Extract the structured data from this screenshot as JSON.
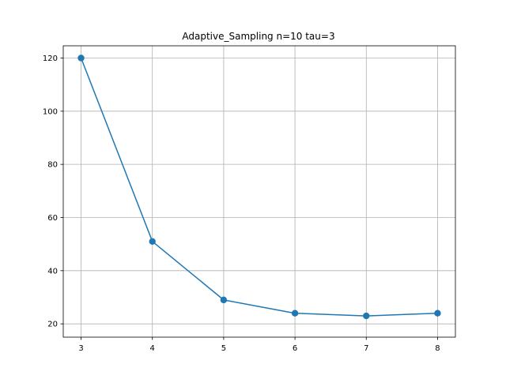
{
  "chart_data": {
    "type": "line",
    "title": "Adaptive_Sampling n=10 tau=3",
    "xlabel": "",
    "ylabel": "",
    "xlim": [
      2.75,
      8.25
    ],
    "ylim": [
      15.0,
      124.6
    ],
    "x_ticks": [
      3,
      4,
      5,
      6,
      7,
      8
    ],
    "y_ticks": [
      20,
      40,
      60,
      80,
      100,
      120
    ],
    "grid": true,
    "series": [
      {
        "x": [
          3,
          4,
          5,
          6,
          7,
          8
        ],
        "values": [
          120,
          51,
          29,
          24,
          23,
          24
        ],
        "color": "#1f77b4",
        "marker": "circle"
      }
    ]
  },
  "colors": {
    "grid": "#b0b0b0",
    "axes": "#000000",
    "line": "#1f77b4"
  }
}
